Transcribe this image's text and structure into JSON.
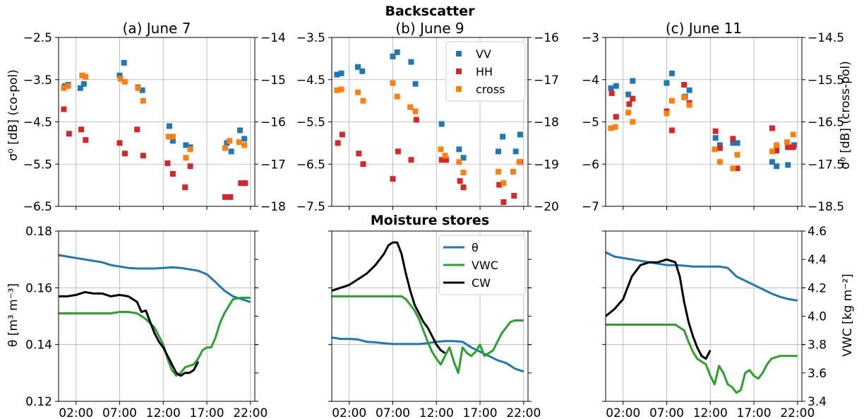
{
  "titles": {
    "row1": "Backscatter",
    "row2": "Moisture stores",
    "panels": [
      "(a) June 7",
      "(b) June 9",
      "(c) June 11"
    ]
  },
  "axis_labels": {
    "copol": "σ⁰ [dB] (co-pol)",
    "crosspol": "σ⁰ [dB] (cross-pol)",
    "theta": "θ [m³ m⁻³]",
    "vwc": "VWC [kg m⁻²]"
  },
  "chart_data": [
    {
      "type": "scatter",
      "title": "(a) June 7",
      "x_unit": "hour of day",
      "x_ticks": [
        "02:00",
        "07:00",
        "12:00",
        "17:00",
        "22:00"
      ],
      "xlim": [
        0,
        22.5
      ],
      "ylabel_left": "σ⁰ [dB] (co-pol)",
      "ylim_left": [
        -6.5,
        -2.5
      ],
      "yticks_left": [
        "-6.5",
        "-5.5",
        "-4.5",
        "-3.5",
        "-2.5"
      ],
      "ylim_right": [
        -18,
        -14
      ],
      "yticks_right": [
        "-18",
        "-17",
        "-16",
        "-15",
        "-14"
      ],
      "colors": {
        "VV": "#1f77b4",
        "HH": "#d62728",
        "cross": "#ff7f0e"
      },
      "grid": true,
      "series": [
        {
          "name": "VV",
          "axis": "left",
          "x": [
            0.7,
            1.1,
            2.5,
            2.9,
            7.0,
            7.5,
            9.1,
            9.6,
            12.7,
            13.1,
            14.6,
            15.1,
            19.3,
            19.8,
            20.8,
            21.3
          ],
          "y": [
            -3.65,
            -3.62,
            -3.7,
            -3.6,
            -3.4,
            -3.1,
            -3.68,
            -3.75,
            -4.6,
            -4.95,
            -5.05,
            -5.1,
            -5.0,
            -5.2,
            -4.7,
            -4.9
          ]
        },
        {
          "name": "HH",
          "axis": "left",
          "x": [
            0.6,
            1.2,
            2.6,
            3.1,
            7.0,
            7.6,
            9.0,
            9.7,
            12.5,
            13.1,
            14.5,
            15.1,
            19.1,
            19.7,
            20.9,
            21.4
          ],
          "y": [
            -4.2,
            -4.78,
            -4.68,
            -4.93,
            -5.0,
            -5.25,
            -4.68,
            -5.3,
            -5.48,
            -5.73,
            -6.05,
            -5.55,
            -6.28,
            -6.28,
            -5.95,
            -5.95
          ]
        },
        {
          "name": "cross",
          "axis": "right",
          "x": [
            0.6,
            1.1,
            2.7,
            3.1,
            7.1,
            7.6,
            9.1,
            9.7,
            12.6,
            13.1,
            14.6,
            15.1,
            19.1,
            19.6,
            20.7,
            21.3
          ],
          "y": [
            -15.2,
            -15.15,
            -14.9,
            -14.93,
            -14.98,
            -15.05,
            -15.2,
            -15.5,
            -16.35,
            -16.35,
            -16.85,
            -16.65,
            -16.62,
            -16.45,
            -16.48,
            -16.55
          ]
        }
      ]
    },
    {
      "type": "scatter",
      "title": "(b) June 9",
      "x_unit": "hour of day",
      "x_ticks": [
        "02:00",
        "07:00",
        "12:00",
        "17:00",
        "22:00"
      ],
      "xlim": [
        0,
        22.5
      ],
      "ylim_left": [
        -7.5,
        -3.5
      ],
      "yticks_left": [
        "-7.5",
        "-6.5",
        "-5.5",
        "-4.5",
        "-3.5"
      ],
      "ylim_right": [
        -20,
        -16
      ],
      "yticks_right": [
        "-20",
        "-19",
        "-18",
        "-17",
        "-16"
      ],
      "legend": {
        "entries": [
          "VV",
          "HH",
          "cross"
        ],
        "placement": "top-right"
      },
      "grid": true,
      "series": [
        {
          "name": "VV",
          "axis": "left",
          "x": [
            0.6,
            1.1,
            3.0,
            3.5,
            7.0,
            7.5,
            9.1,
            9.6,
            12.6,
            13.1,
            14.6,
            15.1,
            19.1,
            19.6,
            21.1,
            21.6
          ],
          "y": [
            -4.38,
            -4.35,
            -4.2,
            -4.3,
            -3.95,
            -3.85,
            -4.08,
            -4.6,
            -5.55,
            -6.4,
            -6.15,
            -6.35,
            -6.2,
            -5.85,
            -6.2,
            -5.8
          ]
        },
        {
          "name": "HH",
          "axis": "left",
          "x": [
            0.7,
            1.2,
            3.1,
            3.6,
            7.0,
            7.6,
            9.1,
            9.7,
            12.6,
            13.1,
            14.7,
            15.1,
            19.2,
            19.7,
            20.9,
            21.6
          ],
          "y": [
            -6.0,
            -5.8,
            -6.25,
            -6.5,
            -6.85,
            -6.2,
            -6.4,
            -5.45,
            -6.4,
            -6.4,
            -6.9,
            -7.05,
            -6.99,
            -7.4,
            -7.25,
            -6.45
          ]
        },
        {
          "name": "cross",
          "axis": "right",
          "x": [
            0.6,
            1.1,
            3.0,
            3.6,
            7.0,
            7.5,
            9.0,
            9.6,
            12.5,
            13.0,
            14.6,
            15.1,
            19.1,
            19.7,
            20.8,
            21.5
          ],
          "y": [
            -17.25,
            -17.23,
            -17.3,
            -17.5,
            -17.08,
            -17.4,
            -17.65,
            -17.75,
            -18.65,
            -18.8,
            -18.95,
            -19.2,
            -19.18,
            -19.45,
            -19.18,
            -18.95
          ]
        }
      ]
    },
    {
      "type": "scatter",
      "title": "(c) June 11",
      "x_unit": "hour of day",
      "x_ticks": [
        "02:00",
        "07:00",
        "12:00",
        "17:00",
        "22:00"
      ],
      "xlim": [
        0,
        22.5
      ],
      "ylim_left": [
        -7,
        -3
      ],
      "yticks_left": [
        "-7",
        "-6",
        "-5",
        "-4",
        "-3"
      ],
      "ylim_right": [
        -18.5,
        -14.5
      ],
      "yticks_right": [
        "-18.5",
        "-17.5",
        "-16.5",
        "-15.5",
        "-14.5"
      ],
      "ylabel_right": "σ⁰ [dB] (cross-pol)",
      "grid": true,
      "series": [
        {
          "name": "VV",
          "axis": "left",
          "x": [
            0.6,
            1.2,
            2.6,
            3.1,
            7.0,
            7.6,
            9.1,
            9.6,
            12.6,
            13.1,
            14.6,
            15.1,
            19.1,
            19.6,
            20.9,
            21.6
          ],
          "y": [
            -4.2,
            -4.15,
            -4.35,
            -4.03,
            -4.08,
            -3.85,
            -4.4,
            -4.25,
            -5.38,
            -5.55,
            -5.5,
            -5.5,
            -5.95,
            -6.05,
            -6.02,
            -5.55
          ]
        },
        {
          "name": "HH",
          "axis": "left",
          "x": [
            0.7,
            1.2,
            2.7,
            3.1,
            7.0,
            7.6,
            9.0,
            9.6,
            12.6,
            13.1,
            14.6,
            15.1,
            19.1,
            19.6,
            20.9,
            21.5
          ],
          "y": [
            -4.32,
            -4.88,
            -4.58,
            -4.45,
            -4.75,
            -5.2,
            -4.12,
            -4.55,
            -5.22,
            -5.62,
            -5.4,
            -6.1,
            -5.15,
            -5.68,
            -5.6,
            -5.6
          ]
        },
        {
          "name": "cross",
          "axis": "right",
          "x": [
            0.6,
            1.1,
            2.6,
            3.1,
            7.0,
            7.6,
            9.0,
            9.6,
            12.5,
            13.1,
            14.6,
            15.1,
            19.1,
            19.6,
            20.8,
            21.5
          ],
          "y": [
            -16.65,
            -16.62,
            -16.28,
            -16.5,
            -16.3,
            -16.0,
            -15.92,
            -16.1,
            -17.15,
            -17.45,
            -17.6,
            -17.28,
            -17.2,
            -17.05,
            -16.98,
            -16.8
          ]
        }
      ]
    },
    {
      "type": "line",
      "title": "",
      "x_unit": "hour of day",
      "x_ticks": [
        "02:00",
        "07:00",
        "12:00",
        "17:00",
        "22:00"
      ],
      "xlim": [
        0,
        22.5
      ],
      "ylabel_left": "θ [m³ m⁻³]",
      "ylim_left": [
        0.12,
        0.18
      ],
      "yticks_left": [
        "0.12",
        "0.14",
        "0.16",
        "0.18"
      ],
      "ylim_right": [
        3.4,
        4.6
      ],
      "grid": true,
      "colors": {
        "θ": "#1f77b4",
        "VWC": "#2ca02c",
        "CW": "#000000"
      },
      "series": [
        {
          "name": "θ",
          "axis": "left",
          "x": [
            0,
            1,
            2,
            3,
            4,
            5,
            6,
            7,
            8,
            9,
            10,
            11,
            12,
            13,
            14,
            15,
            16,
            17,
            18,
            19,
            20,
            21,
            22
          ],
          "y": [
            0.1715,
            0.171,
            0.1705,
            0.17,
            0.1695,
            0.169,
            0.168,
            0.1675,
            0.167,
            0.1668,
            0.1668,
            0.1668,
            0.167,
            0.1672,
            0.167,
            0.1665,
            0.166,
            0.1648,
            0.162,
            0.159,
            0.157,
            0.156,
            0.155
          ]
        },
        {
          "name": "VWC",
          "axis": "right",
          "x": [
            0,
            1,
            2,
            3,
            4,
            5,
            6,
            7,
            8,
            9,
            10,
            11,
            11.5,
            12,
            12.5,
            13,
            13.5,
            14,
            14.5,
            15,
            15.5,
            16,
            16.5,
            17,
            17.5,
            18,
            18.5,
            19,
            20,
            21,
            22
          ],
          "y": [
            4.02,
            4.02,
            4.02,
            4.02,
            4.02,
            4.02,
            4.02,
            4.03,
            4.03,
            4.02,
            3.98,
            3.92,
            3.86,
            3.8,
            3.7,
            3.62,
            3.58,
            3.6,
            3.64,
            3.65,
            3.66,
            3.7,
            3.76,
            3.78,
            3.78,
            3.85,
            3.95,
            4.02,
            4.12,
            4.13,
            4.13
          ]
        },
        {
          "name": "CW",
          "axis": "right",
          "x": [
            0,
            1,
            2,
            3,
            4,
            5,
            6,
            7,
            8,
            9,
            9.5,
            10,
            10.5,
            11,
            11.5,
            12,
            12.5,
            13,
            13.5,
            14,
            14.5,
            15,
            15.5,
            16
          ],
          "y": [
            4.14,
            4.14,
            4.15,
            4.17,
            4.16,
            4.16,
            4.14,
            4.15,
            4.14,
            4.1,
            4.03,
            4.04,
            3.96,
            3.88,
            3.82,
            3.78,
            3.72,
            3.66,
            3.6,
            3.58,
            3.6,
            3.6,
            3.62,
            3.68
          ]
        }
      ]
    },
    {
      "type": "line",
      "title": "",
      "x_unit": "hour of day",
      "x_ticks": [
        "02:00",
        "07:00",
        "12:00",
        "17:00",
        "22:00"
      ],
      "xlim": [
        0,
        22.5
      ],
      "ylim_left": [
        0.12,
        0.18
      ],
      "ylim_right": [
        3.4,
        4.6
      ],
      "legend": {
        "entries": [
          "θ",
          "VWC",
          "CW"
        ],
        "placement": "top-right"
      },
      "grid": true,
      "series": [
        {
          "name": "θ",
          "axis": "left",
          "x": [
            0,
            1,
            2,
            3,
            4,
            5,
            6,
            7,
            8,
            9,
            10,
            11,
            12,
            13,
            14,
            15,
            16,
            17,
            18,
            19,
            20,
            21,
            22
          ],
          "y": [
            0.1425,
            0.142,
            0.142,
            0.1418,
            0.141,
            0.1408,
            0.1405,
            0.1402,
            0.1402,
            0.1402,
            0.1402,
            0.1405,
            0.141,
            0.1412,
            0.1412,
            0.141,
            0.139,
            0.1375,
            0.136,
            0.1345,
            0.1335,
            0.1315,
            0.1305
          ]
        },
        {
          "name": "VWC",
          "axis": "right",
          "x": [
            0,
            1,
            2,
            3,
            4,
            5,
            6,
            7,
            8,
            8.5,
            9,
            9.5,
            10,
            10.5,
            11,
            11.5,
            12,
            12.5,
            13,
            13.5,
            14,
            14.5,
            15,
            15.5,
            16,
            16.5,
            17,
            17.5,
            18,
            18.5,
            19,
            19.5,
            20,
            20.5,
            21,
            22
          ],
          "y": [
            4.14,
            4.14,
            4.14,
            4.14,
            4.14,
            4.14,
            4.14,
            4.14,
            4.14,
            4.12,
            4.08,
            4.04,
            3.98,
            3.9,
            3.82,
            3.75,
            3.7,
            3.66,
            3.72,
            3.78,
            3.68,
            3.6,
            3.78,
            3.74,
            3.72,
            3.75,
            3.8,
            3.72,
            3.74,
            3.76,
            3.82,
            3.88,
            3.92,
            3.96,
            3.97,
            3.97
          ]
        },
        {
          "name": "CW",
          "axis": "right",
          "x": [
            0,
            1,
            2,
            3,
            4,
            5,
            6,
            6.5,
            7,
            7.5,
            8,
            8.5,
            9,
            9.5,
            10,
            10.5,
            11,
            11.5,
            12,
            12.5,
            13
          ],
          "y": [
            4.18,
            4.2,
            4.22,
            4.26,
            4.3,
            4.36,
            4.44,
            4.5,
            4.52,
            4.52,
            4.44,
            4.3,
            4.18,
            4.08,
            4.02,
            3.96,
            3.92,
            3.86,
            3.8,
            3.76,
            3.74
          ]
        }
      ]
    },
    {
      "type": "line",
      "title": "",
      "x_unit": "hour of day",
      "x_ticks": [
        "02:00",
        "07:00",
        "12:00",
        "17:00",
        "22:00"
      ],
      "xlim": [
        0,
        22.5
      ],
      "ylim_left": [
        0.12,
        0.18
      ],
      "ylabel_right": "VWC [kg m⁻²]",
      "ylim_right": [
        3.4,
        4.6
      ],
      "yticks_right": [
        "3.4",
        "3.6",
        "3.8",
        "4.0",
        "4.2",
        "4.4",
        "4.6"
      ],
      "grid": true,
      "series": [
        {
          "name": "θ",
          "axis": "left",
          "x": [
            0,
            1,
            2,
            3,
            4,
            5,
            6,
            7,
            8,
            9,
            10,
            11,
            12,
            13,
            14,
            15,
            16,
            17,
            18,
            19,
            20,
            21,
            22
          ],
          "y": [
            0.1725,
            0.171,
            0.1705,
            0.17,
            0.1695,
            0.169,
            0.1685,
            0.168,
            0.168,
            0.1678,
            0.1675,
            0.1675,
            0.1675,
            0.1675,
            0.167,
            0.164,
            0.1625,
            0.161,
            0.1595,
            0.158,
            0.1568,
            0.156,
            0.1555
          ]
        },
        {
          "name": "VWC",
          "axis": "right",
          "x": [
            0,
            1,
            2,
            3,
            4,
            5,
            6,
            7,
            8,
            9,
            9.5,
            10,
            10.5,
            11,
            11.5,
            12,
            12.5,
            13,
            13.5,
            14,
            14.5,
            15,
            15.5,
            16,
            16.5,
            17,
            17.5,
            18,
            18.5,
            19,
            20,
            21,
            22
          ],
          "y": [
            3.94,
            3.94,
            3.94,
            3.94,
            3.94,
            3.94,
            3.94,
            3.94,
            3.94,
            3.9,
            3.82,
            3.75,
            3.7,
            3.68,
            3.66,
            3.58,
            3.52,
            3.65,
            3.6,
            3.52,
            3.5,
            3.46,
            3.48,
            3.6,
            3.62,
            3.58,
            3.56,
            3.6,
            3.66,
            3.7,
            3.72,
            3.72,
            3.72
          ]
        },
        {
          "name": "CW",
          "axis": "right",
          "x": [
            0,
            1,
            2,
            3,
            4,
            5,
            6,
            7,
            8,
            8.5,
            9,
            9.5,
            10,
            10.5,
            11,
            11.5,
            12
          ],
          "y": [
            4.0,
            4.05,
            4.12,
            4.28,
            4.36,
            4.38,
            4.38,
            4.4,
            4.38,
            4.28,
            4.1,
            3.96,
            3.86,
            3.78,
            3.72,
            3.7,
            3.76
          ]
        }
      ]
    }
  ]
}
